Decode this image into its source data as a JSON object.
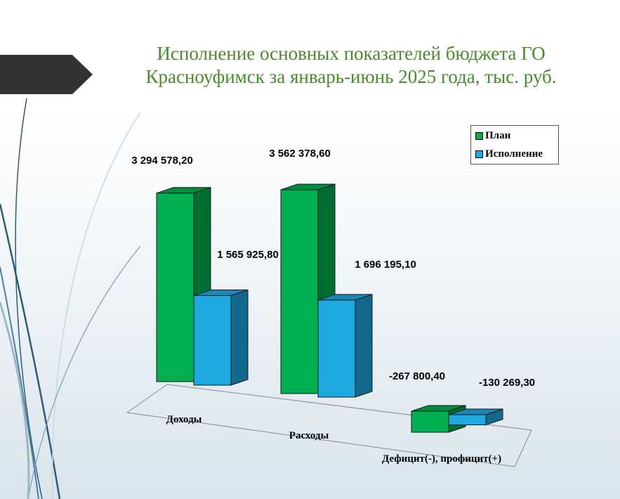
{
  "title": "Исполнение основных показателей бюджета ГО Красноуфимск за январь-июнь 2025 года, тыс. руб.",
  "colors": {
    "title": "#4a8a2c",
    "plan": "#00b050",
    "execution": "#1fa9e1",
    "decor_tab": "#333333"
  },
  "chart_data": {
    "type": "bar",
    "title": "",
    "categories": [
      "Доходы",
      "Расходы",
      "Дефицит(-), профицит(+)"
    ],
    "series": [
      {
        "name": "План",
        "values": [
          3294578.2,
          3562378.6,
          -267800.4
        ],
        "labels": [
          "3 294 578,20",
          "3 562 378,60",
          "-267 800,40"
        ]
      },
      {
        "name": "Исполнение",
        "values": [
          1565925.8,
          1696195.1,
          -130269.3
        ],
        "labels": [
          "1 565 925,80",
          "1 696 195,10",
          "-130 269,30"
        ]
      }
    ],
    "legend_position": "top-right",
    "grid": false,
    "style": "3d-column"
  }
}
